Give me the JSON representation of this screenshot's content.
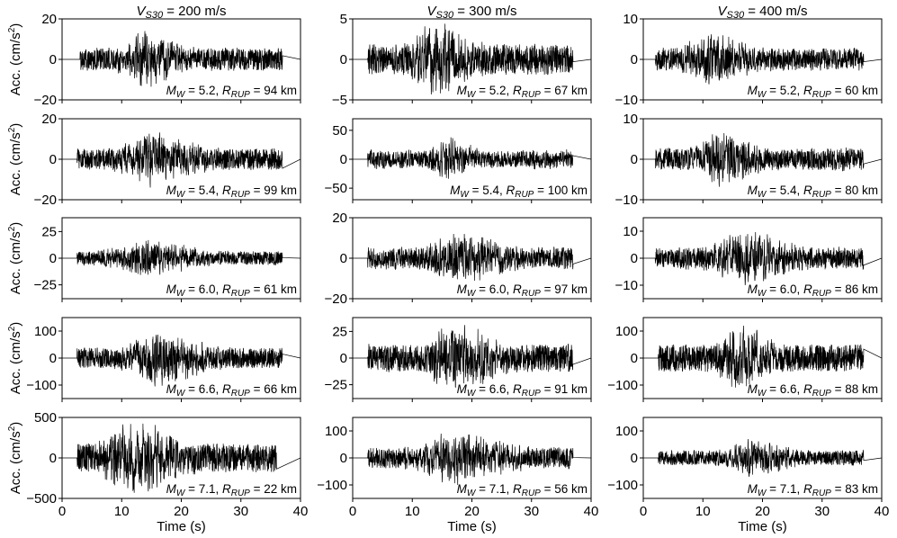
{
  "chart_data": {
    "type": "line",
    "title_prefix": "V",
    "title_sub": "S30",
    "xlabel": "Time (s)",
    "ylabel_text": "Acc. (cm/s",
    "ylabel_sup": "2",
    "ylabel_close": ")",
    "xlim": [
      0,
      40
    ],
    "xticks": [
      0,
      10,
      20,
      30,
      40
    ],
    "grid": false,
    "columns": [
      {
        "title": " = 200 m/s",
        "panels": [
          {
            "mw": "5.2",
            "rrup": "94",
            "ylim": [
              -20,
              20
            ],
            "yticks": [
              -20,
              0,
              20
            ],
            "peak": 14,
            "onset": 3,
            "center": 14,
            "sigma": 3.5,
            "end": 37,
            "noise": 0.06
          },
          {
            "mw": "5.4",
            "rrup": "99",
            "ylim": [
              -20,
              20
            ],
            "yticks": [
              -20,
              0,
              20
            ],
            "peak": 14,
            "onset": 2.5,
            "center": 15,
            "sigma": 4.5,
            "end": 37,
            "noise": 0.05
          },
          {
            "mw": "6.0",
            "rrup": "61",
            "ylim": [
              -38,
              38
            ],
            "yticks": [
              -25,
              0,
              25
            ],
            "peak": 17,
            "onset": 2.5,
            "center": 14,
            "sigma": 5.5,
            "end": 37,
            "noise": 0.05
          },
          {
            "mw": "6.6",
            "rrup": "66",
            "ylim": [
              -150,
              150
            ],
            "yticks": [
              -100,
              0,
              100
            ],
            "peak": 105,
            "onset": 2.5,
            "center": 16,
            "sigma": 4.5,
            "end": 37,
            "noise": 0.02
          },
          {
            "mw": "7.1",
            "rrup": "22",
            "ylim": [
              -500,
              500
            ],
            "yticks": [
              -500,
              0,
              500
            ],
            "peak": 430,
            "onset": 2.5,
            "center": 12,
            "sigma": 4.5,
            "end": 36,
            "noise": 0.02
          }
        ]
      },
      {
        "title": " = 300 m/s",
        "panels": [
          {
            "mw": "5.2",
            "rrup": "67",
            "ylim": [
              -5,
              5
            ],
            "yticks": [
              -5,
              0,
              5
            ],
            "peak": 4.4,
            "onset": 2.5,
            "center": 14,
            "sigma": 3.5,
            "end": 37,
            "noise": 0.07
          },
          {
            "mw": "5.4",
            "rrup": "100",
            "ylim": [
              -70,
              70
            ],
            "yticks": [
              -50,
              0,
              50
            ],
            "peak": 38,
            "onset": 2.5,
            "center": 16,
            "sigma": 2.5,
            "end": 37,
            "noise": 0.12
          },
          {
            "mw": "6.0",
            "rrup": "97",
            "ylim": [
              -20,
              20
            ],
            "yticks": [
              -20,
              0,
              20
            ],
            "peak": 12,
            "onset": 2.5,
            "center": 18,
            "sigma": 5.0,
            "end": 37,
            "noise": 0.12
          },
          {
            "mw": "6.6",
            "rrup": "91",
            "ylim": [
              -38,
              38
            ],
            "yticks": [
              -25,
              0,
              25
            ],
            "peak": 31,
            "onset": 2.5,
            "center": 17,
            "sigma": 4.5,
            "end": 37,
            "noise": 0.07
          },
          {
            "mw": "7.1",
            "rrup": "56",
            "ylim": [
              -150,
              150
            ],
            "yticks": [
              -100,
              0,
              100
            ],
            "peak": 100,
            "onset": 2.5,
            "center": 17,
            "sigma": 6.0,
            "end": 37,
            "noise": 0.1
          }
        ]
      },
      {
        "title": " = 400 m/s",
        "panels": [
          {
            "mw": "5.2",
            "rrup": "60",
            "ylim": [
              -10,
              10
            ],
            "yticks": [
              -10,
              0,
              10
            ],
            "peak": 6.2,
            "onset": 2,
            "center": 11,
            "sigma": 4.0,
            "end": 37,
            "noise": 0.1
          },
          {
            "mw": "5.4",
            "rrup": "80",
            "ylim": [
              -10,
              10
            ],
            "yticks": [
              -10,
              0,
              10
            ],
            "peak": 6.8,
            "onset": 2,
            "center": 13,
            "sigma": 3.5,
            "end": 37,
            "noise": 0.1
          },
          {
            "mw": "6.0",
            "rrup": "86",
            "ylim": [
              -15,
              15
            ],
            "yticks": [
              -10,
              0,
              10
            ],
            "peak": 10,
            "onset": 2,
            "center": 17,
            "sigma": 5.0,
            "end": 37,
            "noise": 0.1
          },
          {
            "mw": "6.6",
            "rrup": "88",
            "ylim": [
              -150,
              150
            ],
            "yticks": [
              -100,
              0,
              100
            ],
            "peak": 120,
            "onset": 2.5,
            "center": 16,
            "sigma": 3.0,
            "end": 37,
            "noise": 0.03
          },
          {
            "mw": "7.1",
            "rrup": "83",
            "ylim": [
              -150,
              150
            ],
            "yticks": [
              -100,
              0,
              100
            ],
            "peak": 70,
            "onset": 2.5,
            "center": 18,
            "sigma": 4.0,
            "end": 37,
            "noise": 0.05
          }
        ]
      }
    ]
  }
}
